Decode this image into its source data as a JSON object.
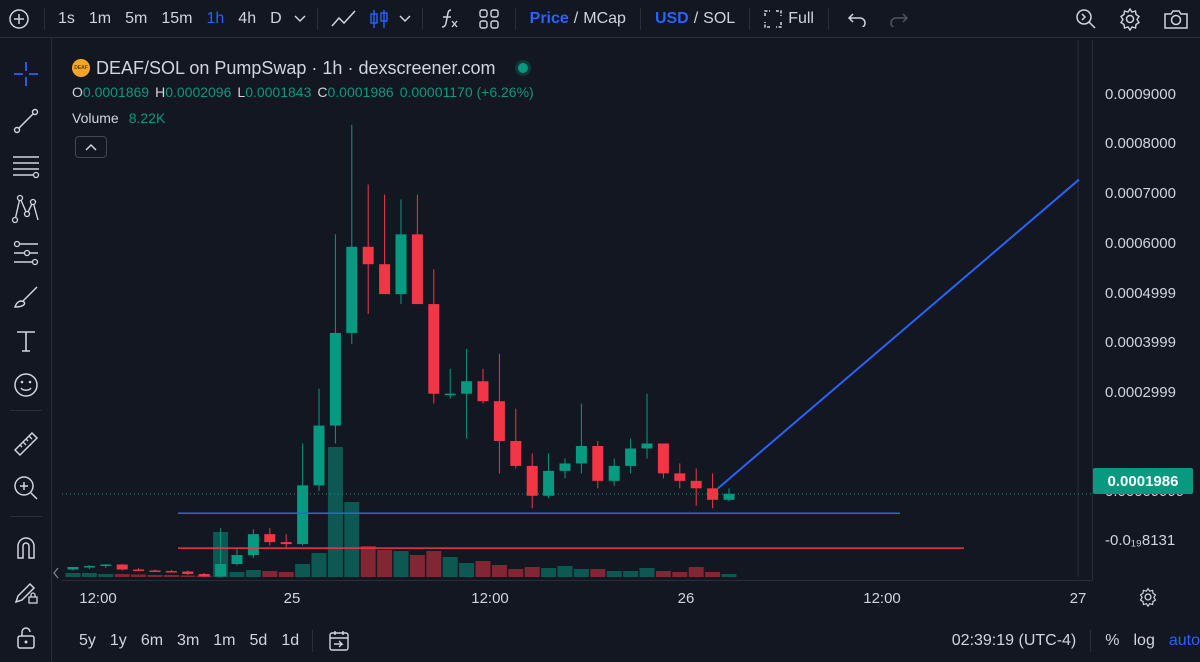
{
  "toolbar": {
    "timeframes": [
      "1s",
      "1m",
      "5m",
      "15m",
      "1h",
      "4h",
      "D"
    ],
    "active_timeframe": "1h",
    "price_label": "Price",
    "mcap_label": "MCap",
    "usd_label": "USD",
    "sol_label": "SOL",
    "full_label": "Full",
    "slash": "/"
  },
  "legend": {
    "logo_text": "DEAF",
    "title": "DEAF/SOL on PumpSwap · 1h · dexscreener.com",
    "o_key": "O",
    "o_val": "0.0001869",
    "h_key": "H",
    "h_val": "0.0002096",
    "l_key": "L",
    "l_val": "0.0001843",
    "c_key": "C",
    "c_val": "0.0001986",
    "change": "0.00001170 (+6.26%)",
    "volume_label": "Volume",
    "volume_val": "8.22K"
  },
  "price_axis": {
    "labels": [
      "0.0009000",
      "0.0008000",
      "0.0007000",
      "0.0006000",
      "0.0004999",
      "0.0003999",
      "0.0002999",
      "0.00009999",
      "-0.0₁₉8131"
    ],
    "last_price": "0.0001986"
  },
  "time_axis": {
    "labels": [
      "12:00",
      "25",
      "12:00",
      "26",
      "12:00",
      "27"
    ]
  },
  "bottombar": {
    "ranges": [
      "5y",
      "1y",
      "6m",
      "3m",
      "1m",
      "5d",
      "1d"
    ],
    "clock": "02:39:19 (UTC-4)",
    "percent_label": "%",
    "log_label": "log",
    "auto_label": "auto"
  },
  "colors": {
    "up": "#089981",
    "down": "#f23645",
    "accent": "#2962ff",
    "support_line": "#2962ff",
    "resistance_line": "#f23645"
  },
  "chart_data": {
    "type": "candlestick",
    "title": "DEAF/SOL on PumpSwap · 1h · dexscreener.com",
    "xlabel": "",
    "ylabel": "",
    "interval": "1h",
    "x_ticks": [
      "12:00",
      "25",
      "12:00",
      "26",
      "12:00",
      "27"
    ],
    "y_ticks": [
      0.0009,
      0.0008,
      0.0007,
      0.0006,
      0.0005,
      0.0004,
      0.0003,
      0.0001
    ],
    "ylim": [
      -2e-05,
      0.00096
    ],
    "candles": [
      {
        "o": 4.7e-05,
        "h": 5.2e-05,
        "l": 4.5e-05,
        "c": 5.2e-05
      },
      {
        "o": 5.2e-05,
        "h": 5.6e-05,
        "l": 4.8e-05,
        "c": 5.4e-05
      },
      {
        "o": 5.4e-05,
        "h": 5.8e-05,
        "l": 5e-05,
        "c": 5.7e-05
      },
      {
        "o": 5.7e-05,
        "h": 5.8e-05,
        "l": 4.5e-05,
        "c": 4.7e-05
      },
      {
        "o": 4.7e-05,
        "h": 5e-05,
        "l": 4.4e-05,
        "c": 4.5e-05
      },
      {
        "o": 4.5e-05,
        "h": 4.7e-05,
        "l": 4.2e-05,
        "c": 4.4e-05
      },
      {
        "o": 4.4e-05,
        "h": 4.6e-05,
        "l": 4.1e-05,
        "c": 4.3e-05
      },
      {
        "o": 4.3e-05,
        "h": 4.5e-05,
        "l": 3.6e-05,
        "c": 3.8e-05
      },
      {
        "o": 3.8e-05,
        "h": 4e-05,
        "l": 3e-05,
        "c": 3.3e-05
      },
      {
        "o": 3.3e-05,
        "h": 0.00013,
        "l": 3.1e-05,
        "c": 5.8e-05
      },
      {
        "o": 5.8e-05,
        "h": 9e-05,
        "l": 5.5e-05,
        "c": 7.6e-05
      },
      {
        "o": 7.6e-05,
        "h": 0.000128,
        "l": 7e-05,
        "c": 0.000118
      },
      {
        "o": 0.000118,
        "h": 0.00013,
        "l": 9.5e-05,
        "c": 0.000102
      },
      {
        "o": 0.000102,
        "h": 0.000118,
        "l": 9e-05,
        "c": 9.8e-05
      },
      {
        "o": 9.8e-05,
        "h": 0.0003,
        "l": 9.5e-05,
        "c": 0.000216
      },
      {
        "o": 0.000216,
        "h": 0.00041,
        "l": 0.000205,
        "c": 0.000336
      },
      {
        "o": 0.000336,
        "h": 0.00072,
        "l": 0.0003,
        "c": 0.000522
      },
      {
        "o": 0.000522,
        "h": 0.00094,
        "l": 0.0005,
        "c": 0.000695
      },
      {
        "o": 0.000695,
        "h": 0.00082,
        "l": 0.00056,
        "c": 0.00066
      },
      {
        "o": 0.00066,
        "h": 0.0008,
        "l": 0.0006,
        "c": 0.0006
      },
      {
        "o": 0.0006,
        "h": 0.00079,
        "l": 0.00058,
        "c": 0.00072
      },
      {
        "o": 0.00072,
        "h": 0.0008,
        "l": 0.00058,
        "c": 0.00058
      },
      {
        "o": 0.00058,
        "h": 0.00065,
        "l": 0.00038,
        "c": 0.0004
      },
      {
        "o": 0.0004,
        "h": 0.00045,
        "l": 0.00039,
        "c": 0.0004
      },
      {
        "o": 0.0004,
        "h": 0.00049,
        "l": 0.00031,
        "c": 0.000425
      },
      {
        "o": 0.000425,
        "h": 0.00045,
        "l": 0.00038,
        "c": 0.000385
      },
      {
        "o": 0.000385,
        "h": 0.00048,
        "l": 0.00024,
        "c": 0.000305
      },
      {
        "o": 0.000305,
        "h": 0.00037,
        "l": 0.00025,
        "c": 0.000255
      },
      {
        "o": 0.000255,
        "h": 0.00028,
        "l": 0.00017,
        "c": 0.000195
      },
      {
        "o": 0.000195,
        "h": 0.00028,
        "l": 0.00019,
        "c": 0.000245
      },
      {
        "o": 0.000245,
        "h": 0.00027,
        "l": 0.00023,
        "c": 0.00026
      },
      {
        "o": 0.00026,
        "h": 0.00038,
        "l": 0.00024,
        "c": 0.000295
      },
      {
        "o": 0.000295,
        "h": 0.000305,
        "l": 0.00021,
        "c": 0.000225
      },
      {
        "o": 0.000225,
        "h": 0.00027,
        "l": 0.000215,
        "c": 0.000255
      },
      {
        "o": 0.000255,
        "h": 0.00031,
        "l": 0.00024,
        "c": 0.00029
      },
      {
        "o": 0.00029,
        "h": 0.0004,
        "l": 0.00027,
        "c": 0.0003
      },
      {
        "o": 0.0003,
        "h": 0.0003,
        "l": 0.00023,
        "c": 0.00024
      },
      {
        "o": 0.00024,
        "h": 0.00026,
        "l": 0.00021,
        "c": 0.000225
      },
      {
        "o": 0.000225,
        "h": 0.00025,
        "l": 0.000175,
        "c": 0.00021
      },
      {
        "o": 0.00021,
        "h": 0.00024,
        "l": 0.00017,
        "c": 0.000187
      },
      {
        "o": 0.000187,
        "h": 0.00021,
        "l": 0.000184,
        "c": 0.000199
      }
    ],
    "volume": [
      8,
      8,
      6,
      6,
      5,
      4,
      4,
      3,
      3,
      90,
      10,
      14,
      12,
      10,
      26,
      48,
      260,
      150,
      62,
      54,
      52,
      44,
      52,
      40,
      28,
      32,
      24,
      16,
      20,
      18,
      22,
      16,
      16,
      12,
      12,
      18,
      12,
      10,
      20,
      10,
      6
    ],
    "drawings": {
      "support_level": 0.00016,
      "resistance_level": 9e-05,
      "trend_line": {
        "from": 0.00021,
        "to": 0.00083
      }
    }
  }
}
